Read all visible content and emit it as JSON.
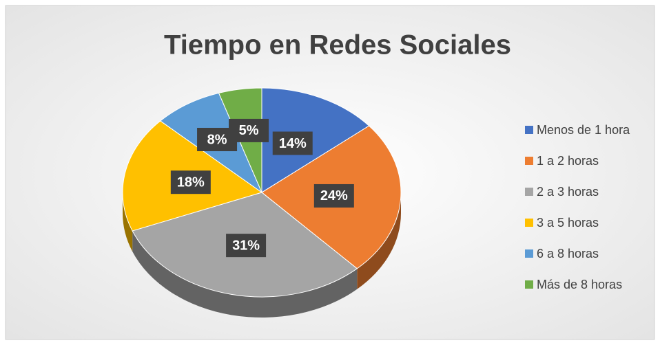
{
  "chart_data": {
    "type": "pie",
    "title": "Tiempo en Redes Sociales",
    "categories": [
      "Menos de 1 hora",
      "1 a 2 horas",
      "2 a 3 horas",
      "3 a 5 horas",
      "6 a 8 horas",
      "Más de 8 horas"
    ],
    "values": [
      14,
      24,
      31,
      18,
      8,
      5
    ],
    "value_labels": [
      "14%",
      "24%",
      "31%",
      "18%",
      "8%",
      "5%"
    ],
    "colors": [
      "#4472c4",
      "#ed7d31",
      "#a5a5a5",
      "#ffc000",
      "#5b9bd5",
      "#70ad47"
    ],
    "legend": "right"
  }
}
